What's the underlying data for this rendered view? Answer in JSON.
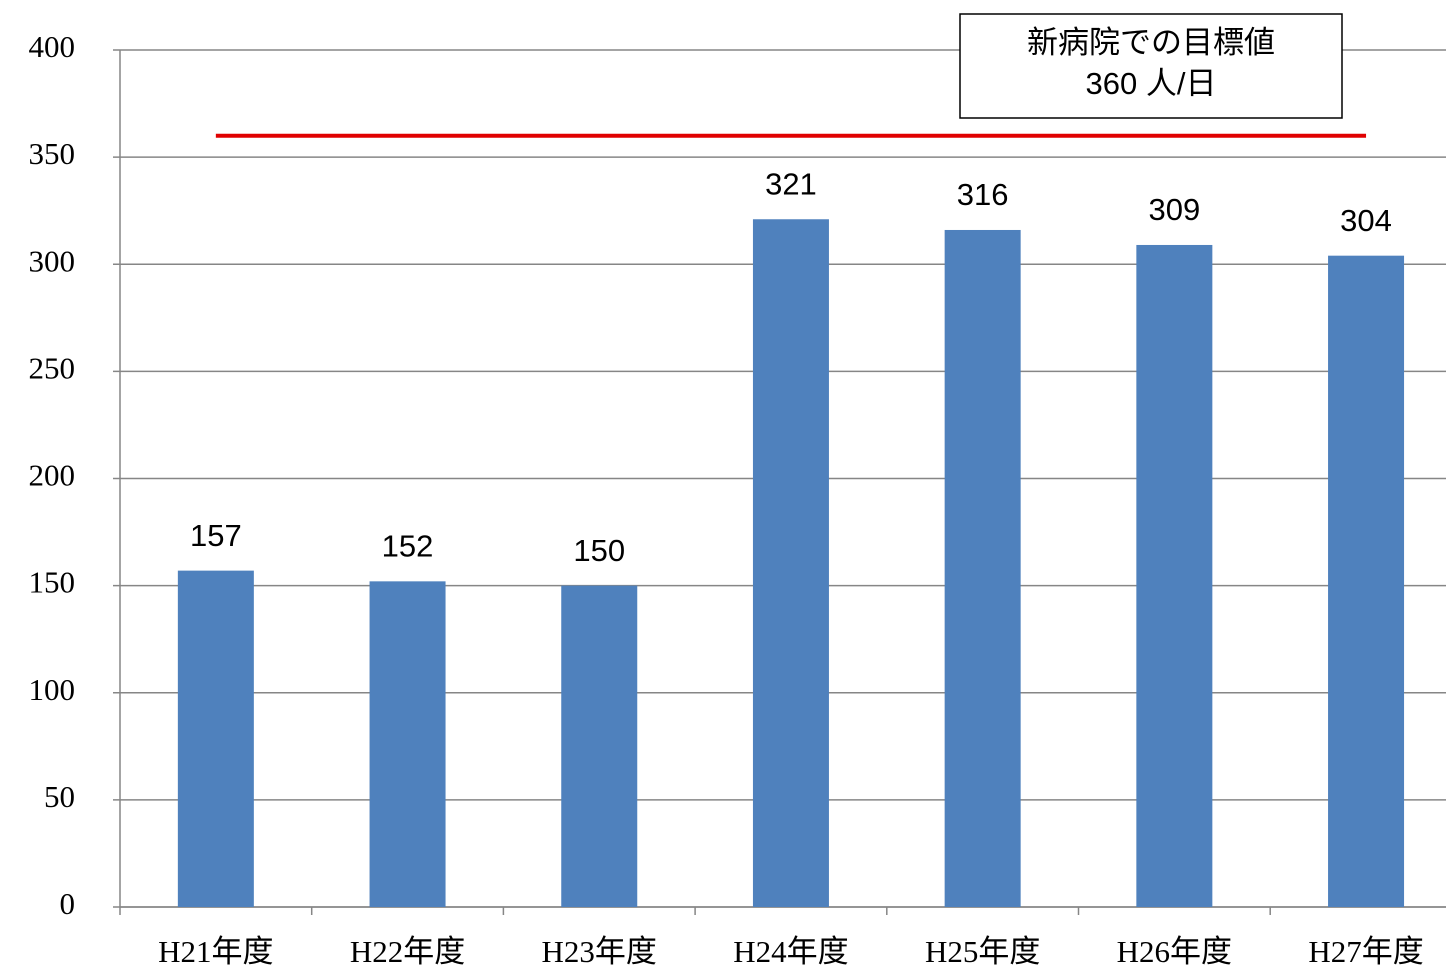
{
  "chart_data": {
    "type": "bar",
    "categories": [
      "H21年度",
      "H22年度",
      "H23年度",
      "H24年度",
      "H25年度",
      "H26年度",
      "H27年度"
    ],
    "values": [
      157,
      152,
      150,
      321,
      316,
      309,
      304
    ],
    "color": "#4f81bd",
    "ylim": [
      0,
      400
    ],
    "yticks": [
      0,
      50,
      100,
      150,
      200,
      250,
      300,
      350,
      400
    ],
    "grid": true,
    "target": {
      "value": 360,
      "color": "#e00000"
    },
    "annotation": [
      "新病院での目標値",
      "360 人/日"
    ]
  }
}
